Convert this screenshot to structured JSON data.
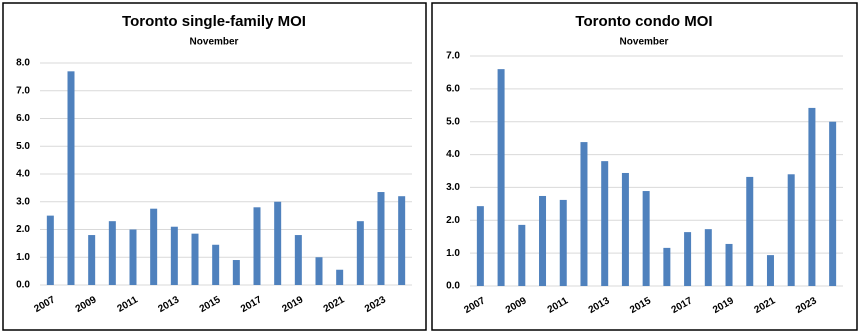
{
  "chart_data": [
    {
      "type": "bar",
      "title": "Toronto single-family MOI",
      "subtitle": "November",
      "categories": [
        "2007",
        null,
        "2009",
        null,
        "2011",
        null,
        "2013",
        null,
        "2015",
        null,
        "2017",
        null,
        "2019",
        null,
        "2021",
        null,
        "2023",
        null
      ],
      "values": [
        2.5,
        7.7,
        1.8,
        2.3,
        2.0,
        2.75,
        2.1,
        1.85,
        1.45,
        0.9,
        2.8,
        3.0,
        1.8,
        1.0,
        0.55,
        2.3,
        3.35,
        3.2
      ],
      "color": "#4f81bd",
      "ylim": [
        0,
        8
      ],
      "yticks": [
        {
          "value": 0,
          "label": "0.0"
        },
        {
          "value": 1,
          "label": "1.0"
        },
        {
          "value": 2,
          "label": "2.0"
        },
        {
          "value": 3,
          "label": "3.0"
        },
        {
          "value": 4,
          "label": "4.0"
        },
        {
          "value": 5,
          "label": "5.0"
        },
        {
          "value": 6,
          "label": "6.0"
        },
        {
          "value": 7,
          "label": "7.0"
        },
        {
          "value": 8,
          "label": "8.0"
        }
      ],
      "grid": true
    },
    {
      "type": "bar",
      "title": "Toronto condo MOI",
      "subtitle": "November",
      "categories": [
        "2007",
        null,
        "2009",
        null,
        "2011",
        null,
        "2013",
        null,
        "2015",
        null,
        "2017",
        null,
        "2019",
        null,
        "2021",
        null,
        "2023",
        null
      ],
      "values": [
        2.43,
        6.6,
        1.86,
        2.74,
        2.62,
        4.38,
        3.8,
        3.44,
        2.89,
        1.16,
        1.64,
        1.73,
        1.28,
        3.32,
        0.94,
        3.4,
        5.42,
        5.0
      ],
      "color": "#4f81bd",
      "ylim": [
        0,
        7
      ],
      "yticks": [
        {
          "value": 0,
          "label": "0.0"
        },
        {
          "value": 1,
          "label": "1.0"
        },
        {
          "value": 2,
          "label": "2.0"
        },
        {
          "value": 3,
          "label": "3.0"
        },
        {
          "value": 4,
          "label": "4.0"
        },
        {
          "value": 5,
          "label": "5.0"
        },
        {
          "value": 6,
          "label": "6.0"
        },
        {
          "value": 7,
          "label": "7.0"
        }
      ],
      "grid": true
    }
  ]
}
